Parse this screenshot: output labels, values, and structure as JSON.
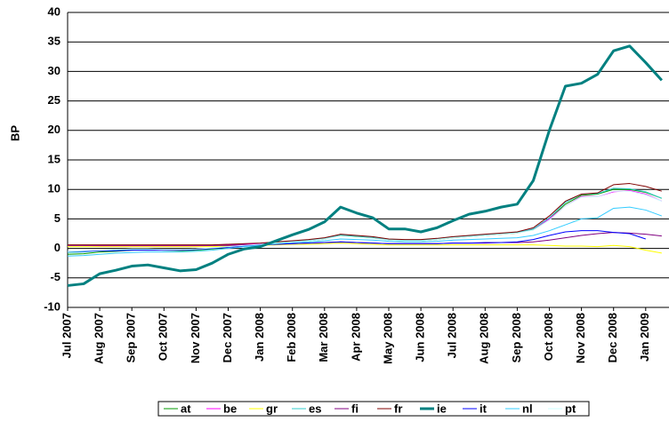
{
  "chart_data": {
    "type": "line",
    "y_label": "BP",
    "categories": [
      "Jul 2007",
      null,
      "Aug 2007",
      null,
      "Sep 2007",
      null,
      "Oct 2007",
      null,
      "Nov 2007",
      null,
      "Dec 2007",
      null,
      "Jan 2008",
      null,
      "Feb 2008",
      null,
      "Mar 2008",
      null,
      "Apr 2008",
      null,
      "May 2008",
      null,
      "Jun 2008",
      null,
      "Jul 2008",
      null,
      "Aug 2008",
      null,
      "Sep 2008",
      null,
      "Oct 2008",
      null,
      "Nov 2008",
      null,
      "Dec 2008",
      null,
      "Jan 2009",
      null
    ],
    "ylim": [
      -10,
      40
    ],
    "yticks": [
      -10,
      -5,
      0,
      5,
      10,
      15,
      20,
      25,
      30,
      35,
      40
    ],
    "grid": true,
    "legend": "bottom",
    "series": [
      {
        "name": "at",
        "color": "#009900",
        "values": [
          -1,
          -0.9,
          -0.6,
          -0.5,
          -0.3,
          -0.2,
          -0.3,
          -0.4,
          -0.3,
          -0.1,
          0.2,
          0.4,
          0.6,
          0.9,
          1.1,
          1.3,
          1.6,
          2.2,
          2.0,
          1.8,
          1.4,
          1.3,
          1.3,
          1.5,
          1.8,
          2.0,
          2.2,
          2.4,
          2.6,
          3.2,
          5,
          7.5,
          9,
          9.2,
          10,
          10,
          9.5,
          8.5
        ]
      },
      {
        "name": "be",
        "color": "#ff00ff",
        "values": [
          0.5,
          0.5,
          0.4,
          0.4,
          0.4,
          0.4,
          0.4,
          0.4,
          0.4,
          0.5,
          0.6,
          0.7,
          0.8,
          1,
          1.2,
          1.4,
          1.7,
          2.3,
          2.1,
          1.9,
          1.5,
          1.4,
          1.4,
          1.6,
          1.9,
          2.1,
          2.3,
          2.5,
          2.7,
          3.3,
          5,
          7.2,
          8.8,
          8.8,
          9.6,
          9.8,
          9.2,
          8
        ]
      },
      {
        "name": "gr",
        "color": "#ffff00",
        "values": [
          0.3,
          0.3,
          0.3,
          0.3,
          0.3,
          0.3,
          0.3,
          0.3,
          0.3,
          0.3,
          0.4,
          0.4,
          0.5,
          0.6,
          0.7,
          0.7,
          0.8,
          0.9,
          0.8,
          0.7,
          0.6,
          0.6,
          0.6,
          0.6,
          0.6,
          0.6,
          0.6,
          0.6,
          0.6,
          0.6,
          0.5,
          0.4,
          0.4,
          0.3,
          0.5,
          0.3,
          -0.3,
          -0.8
        ]
      },
      {
        "name": "es",
        "color": "#33cccc",
        "values": [
          -0.7,
          -0.6,
          -0.4,
          -0.3,
          -0.2,
          -0.2,
          -0.3,
          -0.3,
          -0.2,
          0,
          0.3,
          0.5,
          0.7,
          1,
          1.2,
          1.4,
          1.7,
          2.3,
          2.1,
          1.9,
          1.5,
          1.4,
          1.4,
          1.6,
          1.9,
          2.1,
          2.3,
          2.5,
          2.7,
          3.3,
          5.2,
          7.8,
          9.2,
          9.3,
          10.2,
          10.1,
          9.6,
          8.5
        ]
      },
      {
        "name": "fi",
        "color": "#800080",
        "values": [
          0.5,
          0.5,
          0.5,
          0.5,
          0.5,
          0.5,
          0.5,
          0.5,
          0.5,
          0.5,
          0.5,
          0.6,
          0.6,
          0.7,
          0.8,
          0.9,
          1,
          1.1,
          1,
          0.9,
          0.8,
          0.8,
          0.8,
          0.8,
          0.9,
          0.9,
          0.9,
          1,
          1,
          1.1,
          1.4,
          1.8,
          2.2,
          2.5,
          2.7,
          2.6,
          2.4,
          2.1
        ]
      },
      {
        "name": "fr",
        "color": "#800000",
        "values": [
          0.6,
          0.6,
          0.6,
          0.6,
          0.6,
          0.6,
          0.6,
          0.6,
          0.6,
          0.6,
          0.7,
          0.8,
          0.9,
          1.1,
          1.3,
          1.5,
          1.8,
          2.4,
          2.2,
          2,
          1.6,
          1.5,
          1.5,
          1.7,
          2,
          2.2,
          2.4,
          2.6,
          2.8,
          3.5,
          5.5,
          8,
          9.2,
          9.4,
          10.8,
          11,
          10.5,
          9.7
        ]
      },
      {
        "name": "ie",
        "color": "#008080",
        "width": 3,
        "values": [
          -6.3,
          -6,
          -4.3,
          -3.7,
          -3,
          -2.8,
          -3.3,
          -3.8,
          -3.6,
          -2.5,
          -1,
          -0.1,
          0.3,
          1.3,
          2.3,
          3.2,
          4.5,
          7,
          6,
          5.2,
          3.3,
          3.3,
          2.8,
          3.5,
          4.7,
          5.8,
          6.3,
          7,
          7.5,
          11.5,
          20,
          27.5,
          28,
          29.5,
          33.5,
          34.3,
          31.5,
          28.5
        ]
      },
      {
        "name": "it",
        "color": "#0000ff",
        "values": [
          -0.5,
          -0.5,
          -0.4,
          -0.4,
          -0.3,
          -0.3,
          -0.3,
          -0.3,
          -0.2,
          0,
          0.2,
          0.4,
          0.6,
          0.7,
          0.8,
          0.9,
          1,
          1.1,
          1,
          0.9,
          0.8,
          0.8,
          0.8,
          0.8,
          0.9,
          0.9,
          1,
          1,
          1.1,
          1.5,
          2.2,
          2.8,
          3,
          3,
          2.7,
          2.5,
          1.6,
          null
        ]
      },
      {
        "name": "nl",
        "color": "#33ccff",
        "values": [
          -1.3,
          -1.2,
          -1,
          -0.8,
          -0.7,
          -0.6,
          -0.6,
          -0.6,
          -0.5,
          -0.3,
          0,
          0.3,
          0.5,
          0.8,
          1,
          1.1,
          1.3,
          1.6,
          1.5,
          1.4,
          1.2,
          1.1,
          1.1,
          1.2,
          1.4,
          1.5,
          1.6,
          1.7,
          1.8,
          2.2,
          3,
          4,
          5,
          5.2,
          6.8,
          7,
          6.5,
          5.5
        ]
      },
      {
        "name": "pt",
        "color": "#ccffff",
        "values": [
          -0.5,
          -0.4,
          -0.3,
          -0.2,
          -0.1,
          -0.1,
          -0.2,
          -0.2,
          -0.1,
          0.1,
          0.3,
          0.5,
          0.7,
          0.9,
          1.1,
          1.3,
          1.6,
          2.1,
          1.9,
          1.7,
          1.4,
          1.3,
          1.3,
          1.5,
          1.8,
          2,
          2.2,
          2.4,
          2.6,
          3.1,
          4.8,
          7.2,
          8.7,
          8.8,
          9.7,
          9.7,
          9.1,
          8
        ]
      }
    ]
  }
}
